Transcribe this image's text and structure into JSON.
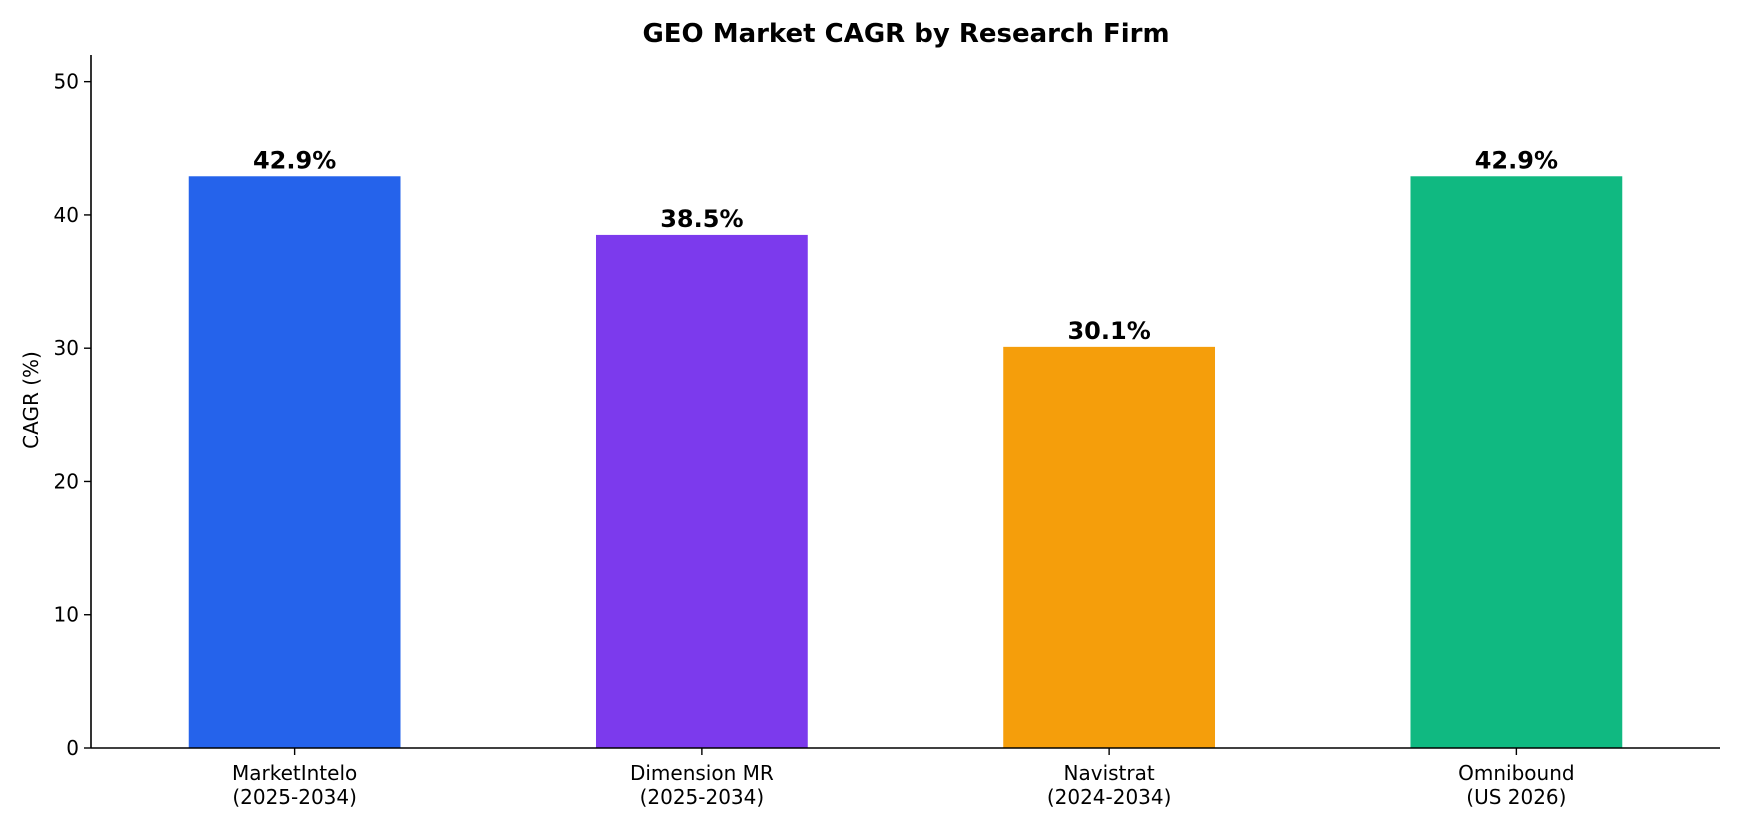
{
  "chart_data": {
    "type": "bar",
    "title": "GEO Market CAGR by Research Firm",
    "xlabel": "",
    "ylabel": "CAGR (%)",
    "ylim": [
      0,
      52
    ],
    "yticks": [
      0,
      10,
      20,
      30,
      40,
      50
    ],
    "grid": false,
    "categories": [
      [
        "MarketIntelo",
        "(2025-2034)"
      ],
      [
        "Dimension MR",
        "(2025-2034)"
      ],
      [
        "Navistrat",
        "(2024-2034)"
      ],
      [
        "Omnibound",
        "(US 2026)"
      ]
    ],
    "values": [
      42.9,
      38.5,
      30.1,
      42.9
    ],
    "data_labels": [
      "42.9%",
      "38.5%",
      "30.1%",
      "42.9%"
    ],
    "colors": [
      "#2563eb",
      "#7c3aed",
      "#f59e0b",
      "#10b981"
    ]
  }
}
